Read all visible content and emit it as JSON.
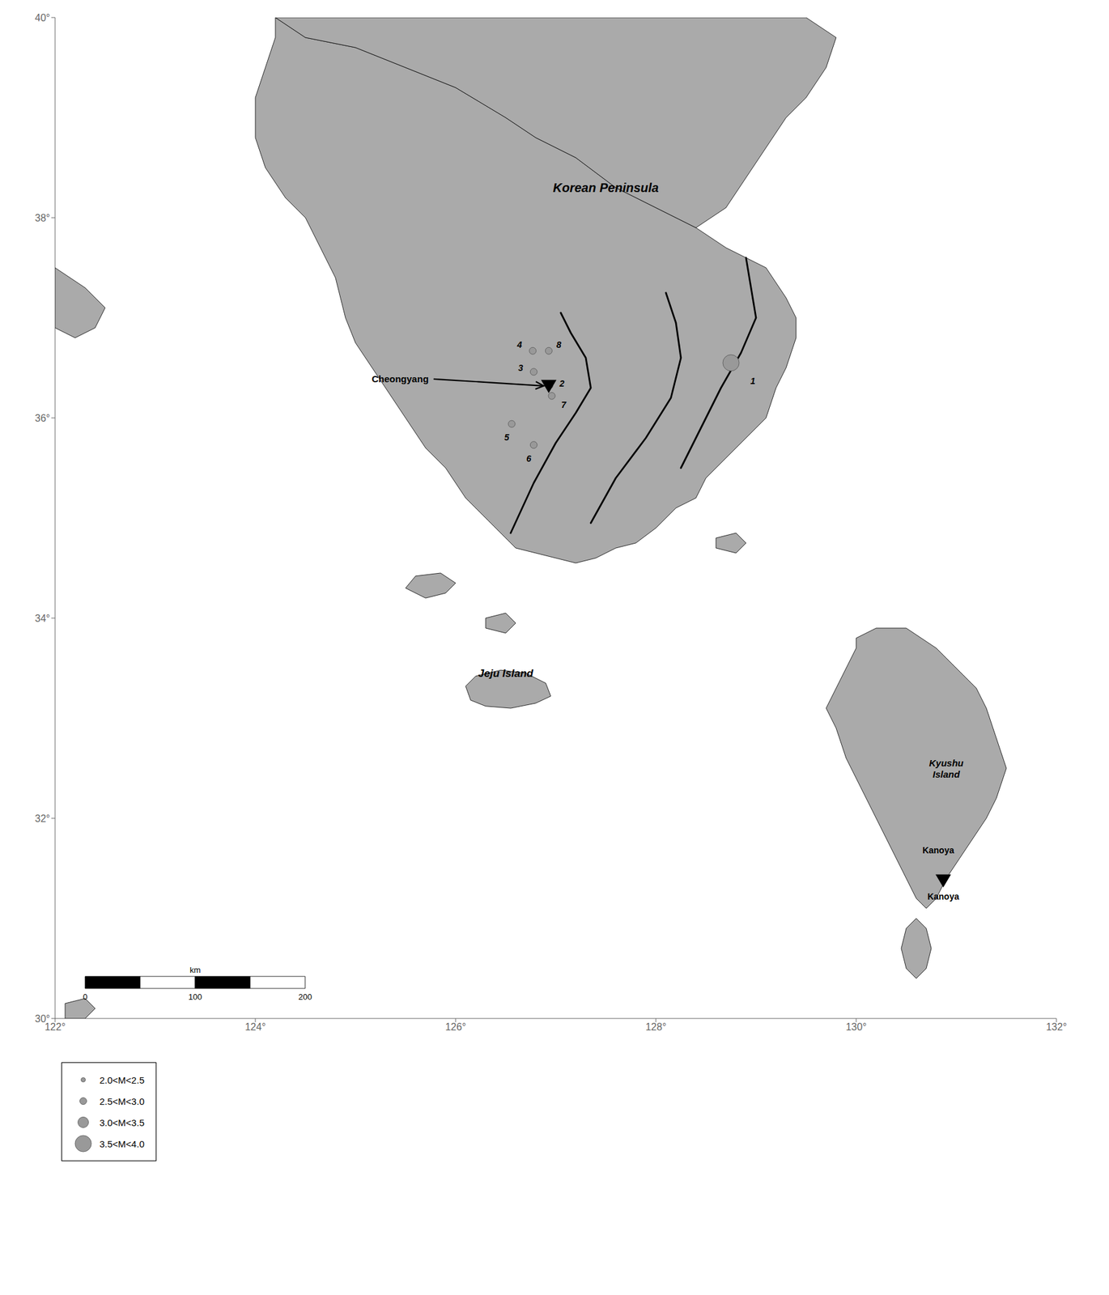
{
  "chart_data": {
    "type": "scatter",
    "xlim": [
      122,
      132
    ],
    "ylim": [
      30,
      40
    ],
    "xticks": [
      {
        "value": 122,
        "label": "122°"
      },
      {
        "value": 124,
        "label": "124°"
      },
      {
        "value": 126,
        "label": "126°"
      },
      {
        "value": 128,
        "label": "128°"
      },
      {
        "value": 130,
        "label": "130°"
      },
      {
        "value": 132,
        "label": "132°"
      }
    ],
    "yticks": [
      {
        "value": 30,
        "label": "30°"
      },
      {
        "value": 32,
        "label": "32°"
      },
      {
        "value": 34,
        "label": "34°"
      },
      {
        "value": 36,
        "label": "36°"
      },
      {
        "value": 38,
        "label": "38°"
      },
      {
        "value": 40,
        "label": "40°"
      }
    ],
    "grid": false,
    "land": {
      "color": "#aaaaaa",
      "edge_color": "#000000",
      "polygons": [
        [
          [
            124.2,
            40.0
          ],
          [
            124.5,
            39.8
          ],
          [
            125.0,
            39.7
          ],
          [
            125.5,
            39.5
          ],
          [
            126.0,
            39.3
          ],
          [
            126.5,
            39.0
          ],
          [
            126.8,
            38.8
          ],
          [
            127.2,
            38.6
          ],
          [
            127.6,
            38.3
          ],
          [
            128.0,
            38.1
          ],
          [
            128.4,
            37.9
          ],
          [
            128.7,
            37.7
          ],
          [
            129.1,
            37.5
          ],
          [
            129.3,
            37.2
          ],
          [
            129.4,
            37.0
          ],
          [
            129.4,
            36.8
          ],
          [
            129.3,
            36.5
          ],
          [
            129.2,
            36.3
          ],
          [
            129.1,
            36.0
          ],
          [
            128.9,
            35.8
          ],
          [
            128.7,
            35.6
          ],
          [
            128.5,
            35.4
          ],
          [
            128.4,
            35.2
          ],
          [
            128.2,
            35.1
          ],
          [
            128.0,
            34.9
          ],
          [
            127.8,
            34.75
          ],
          [
            127.6,
            34.7
          ],
          [
            127.4,
            34.6
          ],
          [
            127.2,
            34.55
          ],
          [
            127.0,
            34.6
          ],
          [
            126.8,
            34.65
          ],
          [
            126.6,
            34.7
          ],
          [
            126.5,
            34.8
          ],
          [
            126.4,
            34.9
          ],
          [
            126.3,
            35.0
          ],
          [
            126.2,
            35.1
          ],
          [
            126.1,
            35.2
          ],
          [
            126.0,
            35.35
          ],
          [
            125.9,
            35.5
          ],
          [
            125.8,
            35.6
          ],
          [
            125.7,
            35.7
          ],
          [
            125.6,
            35.85
          ],
          [
            125.5,
            36.0
          ],
          [
            125.4,
            36.15
          ],
          [
            125.3,
            36.3
          ],
          [
            125.2,
            36.45
          ],
          [
            125.1,
            36.6
          ],
          [
            125.0,
            36.75
          ],
          [
            124.9,
            37.0
          ],
          [
            124.85,
            37.2
          ],
          [
            124.8,
            37.4
          ],
          [
            124.7,
            37.6
          ],
          [
            124.6,
            37.8
          ],
          [
            124.5,
            38.0
          ],
          [
            124.3,
            38.2
          ],
          [
            124.1,
            38.5
          ],
          [
            124.0,
            38.8
          ],
          [
            124.0,
            39.2
          ],
          [
            124.1,
            39.5
          ],
          [
            124.2,
            39.8
          ],
          [
            124.2,
            40.0
          ]
        ],
        [
          [
            124.2,
            40.0
          ],
          [
            124.8,
            40.0
          ],
          [
            125.5,
            40.0
          ],
          [
            126.0,
            40.0
          ],
          [
            126.5,
            40.0
          ],
          [
            127.0,
            40.0
          ],
          [
            127.5,
            40.0
          ],
          [
            128.0,
            40.0
          ],
          [
            128.5,
            40.0
          ],
          [
            129.0,
            40.0
          ],
          [
            129.5,
            40.0
          ],
          [
            129.8,
            39.8
          ],
          [
            129.7,
            39.5
          ],
          [
            129.5,
            39.2
          ],
          [
            129.3,
            39.0
          ],
          [
            129.1,
            38.7
          ],
          [
            128.9,
            38.4
          ],
          [
            128.7,
            38.1
          ],
          [
            128.4,
            37.9
          ],
          [
            128.0,
            38.1
          ],
          [
            127.6,
            38.3
          ],
          [
            127.2,
            38.6
          ],
          [
            126.8,
            38.8
          ],
          [
            126.5,
            39.0
          ],
          [
            126.0,
            39.3
          ],
          [
            125.5,
            39.5
          ],
          [
            125.0,
            39.7
          ],
          [
            124.5,
            39.8
          ],
          [
            124.2,
            40.0
          ]
        ],
        [
          [
            126.15,
            33.18
          ],
          [
            126.3,
            33.12
          ],
          [
            126.55,
            33.1
          ],
          [
            126.8,
            33.15
          ],
          [
            126.95,
            33.22
          ],
          [
            126.9,
            33.35
          ],
          [
            126.7,
            33.45
          ],
          [
            126.45,
            33.48
          ],
          [
            126.2,
            33.42
          ],
          [
            126.1,
            33.32
          ],
          [
            126.15,
            33.18
          ]
        ],
        [
          [
            130.0,
            33.8
          ],
          [
            130.2,
            33.9
          ],
          [
            130.5,
            33.9
          ],
          [
            130.8,
            33.7
          ],
          [
            131.0,
            33.5
          ],
          [
            131.2,
            33.3
          ],
          [
            131.3,
            33.1
          ],
          [
            131.4,
            32.8
          ],
          [
            131.5,
            32.5
          ],
          [
            131.4,
            32.2
          ],
          [
            131.3,
            32.0
          ],
          [
            131.1,
            31.7
          ],
          [
            130.9,
            31.4
          ],
          [
            130.8,
            31.2
          ],
          [
            130.7,
            31.1
          ],
          [
            130.6,
            31.2
          ],
          [
            130.5,
            31.4
          ],
          [
            130.4,
            31.6
          ],
          [
            130.3,
            31.8
          ],
          [
            130.2,
            32.0
          ],
          [
            130.1,
            32.2
          ],
          [
            130.0,
            32.4
          ],
          [
            129.9,
            32.6
          ],
          [
            129.8,
            32.9
          ],
          [
            129.7,
            33.1
          ],
          [
            129.8,
            33.3
          ],
          [
            129.9,
            33.5
          ],
          [
            130.0,
            33.7
          ],
          [
            130.0,
            33.8
          ]
        ],
        [
          [
            130.6,
            30.4
          ],
          [
            130.7,
            30.5
          ],
          [
            130.75,
            30.7
          ],
          [
            130.7,
            30.9
          ],
          [
            130.6,
            31.0
          ],
          [
            130.5,
            30.9
          ],
          [
            130.45,
            30.7
          ],
          [
            130.5,
            30.5
          ],
          [
            130.6,
            30.4
          ]
        ],
        [
          [
            125.5,
            34.3
          ],
          [
            125.7,
            34.2
          ],
          [
            125.9,
            34.25
          ],
          [
            126.0,
            34.35
          ],
          [
            125.85,
            34.45
          ],
          [
            125.6,
            34.42
          ],
          [
            125.5,
            34.3
          ]
        ],
        [
          [
            128.6,
            34.7
          ],
          [
            128.8,
            34.65
          ],
          [
            128.9,
            34.75
          ],
          [
            128.8,
            34.85
          ],
          [
            128.6,
            34.8
          ],
          [
            128.6,
            34.7
          ]
        ],
        [
          [
            122.1,
            30.0
          ],
          [
            122.3,
            30.0
          ],
          [
            122.4,
            30.1
          ],
          [
            122.3,
            30.2
          ],
          [
            122.1,
            30.15
          ],
          [
            122.1,
            30.0
          ]
        ],
        [
          [
            122.0,
            37.5
          ],
          [
            122.3,
            37.3
          ],
          [
            122.5,
            37.1
          ],
          [
            122.4,
            36.9
          ],
          [
            122.2,
            36.8
          ],
          [
            122.0,
            36.9
          ],
          [
            122.0,
            37.5
          ]
        ],
        [
          [
            126.3,
            33.9
          ],
          [
            126.5,
            33.85
          ],
          [
            126.6,
            33.95
          ],
          [
            126.5,
            34.05
          ],
          [
            126.3,
            34.0
          ],
          [
            126.3,
            33.9
          ]
        ]
      ]
    },
    "tectonic_lines": {
      "color": "#000000",
      "lines": [
        [
          [
            127.05,
            37.05
          ],
          [
            127.15,
            36.85
          ],
          [
            127.3,
            36.6
          ],
          [
            127.35,
            36.3
          ],
          [
            127.2,
            36.05
          ],
          [
            127.0,
            35.75
          ],
          [
            126.78,
            35.35
          ],
          [
            126.55,
            34.85
          ]
        ],
        [
          [
            128.1,
            37.25
          ],
          [
            128.2,
            36.95
          ],
          [
            128.25,
            36.6
          ],
          [
            128.15,
            36.2
          ],
          [
            127.9,
            35.8
          ],
          [
            127.6,
            35.4
          ],
          [
            127.35,
            34.95
          ]
        ],
        [
          [
            128.9,
            37.6
          ],
          [
            128.95,
            37.3
          ],
          [
            129.0,
            37.0
          ],
          [
            128.85,
            36.65
          ],
          [
            128.65,
            36.3
          ],
          [
            128.45,
            35.9
          ],
          [
            128.25,
            35.5
          ]
        ]
      ]
    },
    "earthquakes": {
      "color": "#999999",
      "edge_color": "#555555",
      "points": [
        {
          "num": 1,
          "lon": 128.75,
          "lat": 36.55,
          "mag": 3.8
        },
        {
          "num": 2,
          "lon": 126.95,
          "lat": 36.32,
          "mag": 2.3
        },
        {
          "num": 3,
          "lon": 126.78,
          "lat": 36.46,
          "mag": 2.7
        },
        {
          "num": 4,
          "lon": 126.77,
          "lat": 36.67,
          "mag": 2.7
        },
        {
          "num": 5,
          "lon": 126.56,
          "lat": 35.94,
          "mag": 2.7
        },
        {
          "num": 6,
          "lon": 126.78,
          "lat": 35.73,
          "mag": 2.9
        },
        {
          "num": 7,
          "lon": 126.96,
          "lat": 36.22,
          "mag": 2.7
        },
        {
          "num": 8,
          "lon": 126.93,
          "lat": 36.67,
          "mag": 2.7
        }
      ]
    },
    "magnitude_classes": {
      "bins": [
        2.0,
        2.5,
        3.0,
        3.5,
        4.0
      ],
      "labels": [
        "2.0<M<2.5",
        "2.5<M<3.0",
        "3.0<M<3.5",
        "3.5<M<4.0"
      ]
    },
    "stations": {
      "color": "#000000",
      "points": [
        {
          "name": "Cheongyang",
          "lon": 126.93,
          "lat": 36.32
        },
        {
          "name": "Kanoya",
          "lon": 130.87,
          "lat": 31.38
        }
      ]
    },
    "place_labels": [
      {
        "text": "Korean Peninsula",
        "lon": 127.5,
        "lat": 38.3
      },
      {
        "text": "Jeju Island",
        "lon": 126.5,
        "lat": 33.45
      },
      {
        "text": "Kyushu\nIsland",
        "lon": 130.9,
        "lat": 32.5
      },
      {
        "text": "Kanoya",
        "lon": 130.82,
        "lat": 31.68
      }
    ],
    "scale_bar": {
      "ticks": [
        0,
        100,
        200
      ],
      "unit": "km",
      "km_per_degree": 91,
      "colors": [
        "#000000",
        "#ffffff"
      ]
    }
  }
}
